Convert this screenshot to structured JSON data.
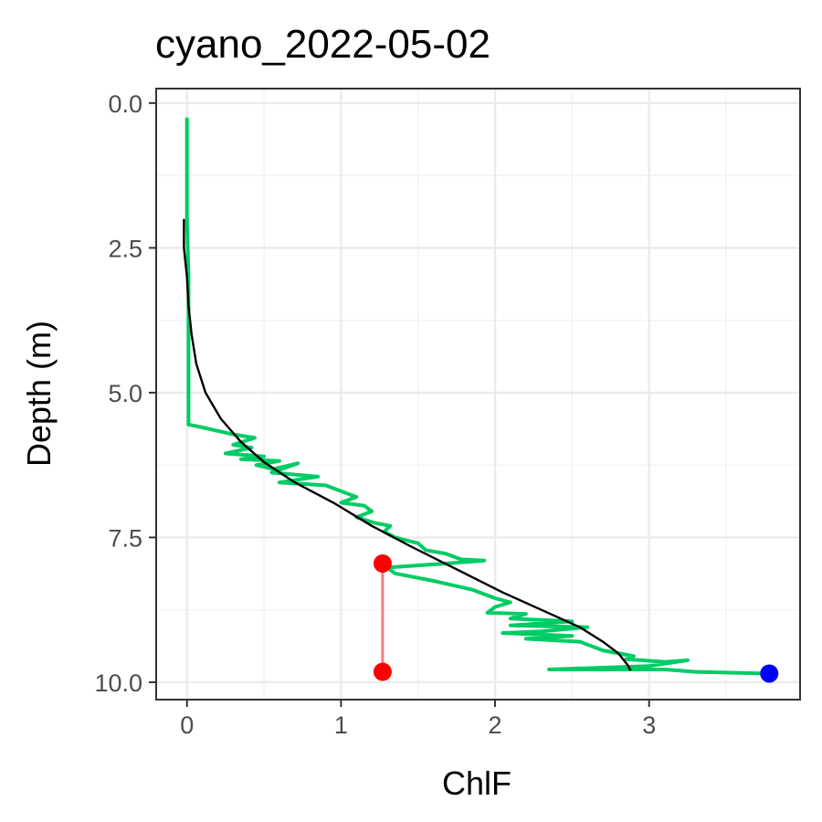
{
  "chart_data": {
    "type": "line",
    "title": "cyano_2022-05-02",
    "xlabel": "ChlF",
    "ylabel": "Depth (m)",
    "xlim": [
      -0.2,
      3.98
    ],
    "ylim": [
      10.3,
      -0.25
    ],
    "y_reversed": true,
    "grid": true,
    "x_ticks": [
      0,
      1,
      2,
      3
    ],
    "x_tick_labels": [
      "0",
      "1",
      "2",
      "3"
    ],
    "y_ticks": [
      0,
      2.5,
      5,
      7.5,
      10
    ],
    "y_tick_labels": [
      "0.0",
      "2.5",
      "5.0",
      "7.5",
      "10.0"
    ],
    "colors": {
      "profile": "#00cc66",
      "fit": "#000000",
      "interval": "#f08080",
      "interval_points": "#ff0000",
      "max_point": "#0000ff"
    },
    "series": [
      {
        "kind": "observed-profile",
        "style": "line",
        "points": [
          [
            0.0,
            0.25
          ],
          [
            0.0,
            1.0
          ],
          [
            0.0,
            2.0
          ],
          [
            0.01,
            3.0
          ],
          [
            0.01,
            4.0
          ],
          [
            0.01,
            5.0
          ],
          [
            0.01,
            5.55
          ],
          [
            0.1,
            5.6
          ],
          [
            0.3,
            5.72
          ],
          [
            0.44,
            5.78
          ],
          [
            0.3,
            5.9
          ],
          [
            0.42,
            5.95
          ],
          [
            0.25,
            6.05
          ],
          [
            0.5,
            6.1
          ],
          [
            0.35,
            6.15
          ],
          [
            0.6,
            6.18
          ],
          [
            0.45,
            6.25
          ],
          [
            0.56,
            6.32
          ],
          [
            0.72,
            6.22
          ],
          [
            0.55,
            6.38
          ],
          [
            0.85,
            6.45
          ],
          [
            0.6,
            6.55
          ],
          [
            0.9,
            6.6
          ],
          [
            1.1,
            6.8
          ],
          [
            1.0,
            6.9
          ],
          [
            1.15,
            6.95
          ],
          [
            1.2,
            7.05
          ],
          [
            1.1,
            7.15
          ],
          [
            1.22,
            7.25
          ],
          [
            1.32,
            7.3
          ],
          [
            1.28,
            7.4
          ],
          [
            1.35,
            7.5
          ],
          [
            1.5,
            7.6
          ],
          [
            1.55,
            7.72
          ],
          [
            1.68,
            7.78
          ],
          [
            1.78,
            7.88
          ],
          [
            1.93,
            7.9
          ],
          [
            1.68,
            7.95
          ],
          [
            1.3,
            8.02
          ],
          [
            1.35,
            8.12
          ],
          [
            1.6,
            8.25
          ],
          [
            1.85,
            8.4
          ],
          [
            2.0,
            8.55
          ],
          [
            2.1,
            8.62
          ],
          [
            2.0,
            8.7
          ],
          [
            1.95,
            8.8
          ],
          [
            2.2,
            8.82
          ],
          [
            2.1,
            8.9
          ],
          [
            2.5,
            8.95
          ],
          [
            2.1,
            9.02
          ],
          [
            2.6,
            9.05
          ],
          [
            2.3,
            9.12
          ],
          [
            2.05,
            9.15
          ],
          [
            2.5,
            9.2
          ],
          [
            2.2,
            9.25
          ],
          [
            2.55,
            9.3
          ],
          [
            2.7,
            9.45
          ],
          [
            2.9,
            9.55
          ],
          [
            2.85,
            9.6
          ],
          [
            3.1,
            9.65
          ],
          [
            3.25,
            9.62
          ],
          [
            3.0,
            9.72
          ],
          [
            2.35,
            9.78
          ],
          [
            3.1,
            9.78
          ],
          [
            3.2,
            9.8
          ],
          [
            3.3,
            9.82
          ],
          [
            3.78,
            9.85
          ]
        ]
      },
      {
        "kind": "fitted-curve",
        "style": "line",
        "points": [
          [
            -0.02,
            2.0
          ],
          [
            -0.02,
            2.5
          ],
          [
            0.0,
            3.0
          ],
          [
            0.01,
            3.5
          ],
          [
            0.03,
            4.0
          ],
          [
            0.06,
            4.5
          ],
          [
            0.12,
            5.0
          ],
          [
            0.22,
            5.45
          ],
          [
            0.35,
            5.85
          ],
          [
            0.5,
            6.2
          ],
          [
            0.7,
            6.55
          ],
          [
            0.95,
            6.9
          ],
          [
            1.2,
            7.3
          ],
          [
            1.45,
            7.65
          ],
          [
            1.75,
            8.05
          ],
          [
            2.05,
            8.45
          ],
          [
            2.3,
            8.75
          ],
          [
            2.55,
            9.05
          ],
          [
            2.7,
            9.3
          ],
          [
            2.8,
            9.5
          ],
          [
            2.86,
            9.7
          ],
          [
            2.88,
            9.8
          ]
        ]
      },
      {
        "kind": "interval-segment",
        "style": "segment",
        "points": [
          [
            1.27,
            7.95
          ],
          [
            1.27,
            9.82
          ]
        ]
      },
      {
        "kind": "interval-endpoints",
        "style": "points",
        "points": [
          [
            1.27,
            7.95
          ],
          [
            1.27,
            9.82
          ]
        ]
      },
      {
        "kind": "maximum-point",
        "style": "points",
        "points": [
          [
            3.78,
            9.85
          ]
        ]
      }
    ]
  }
}
